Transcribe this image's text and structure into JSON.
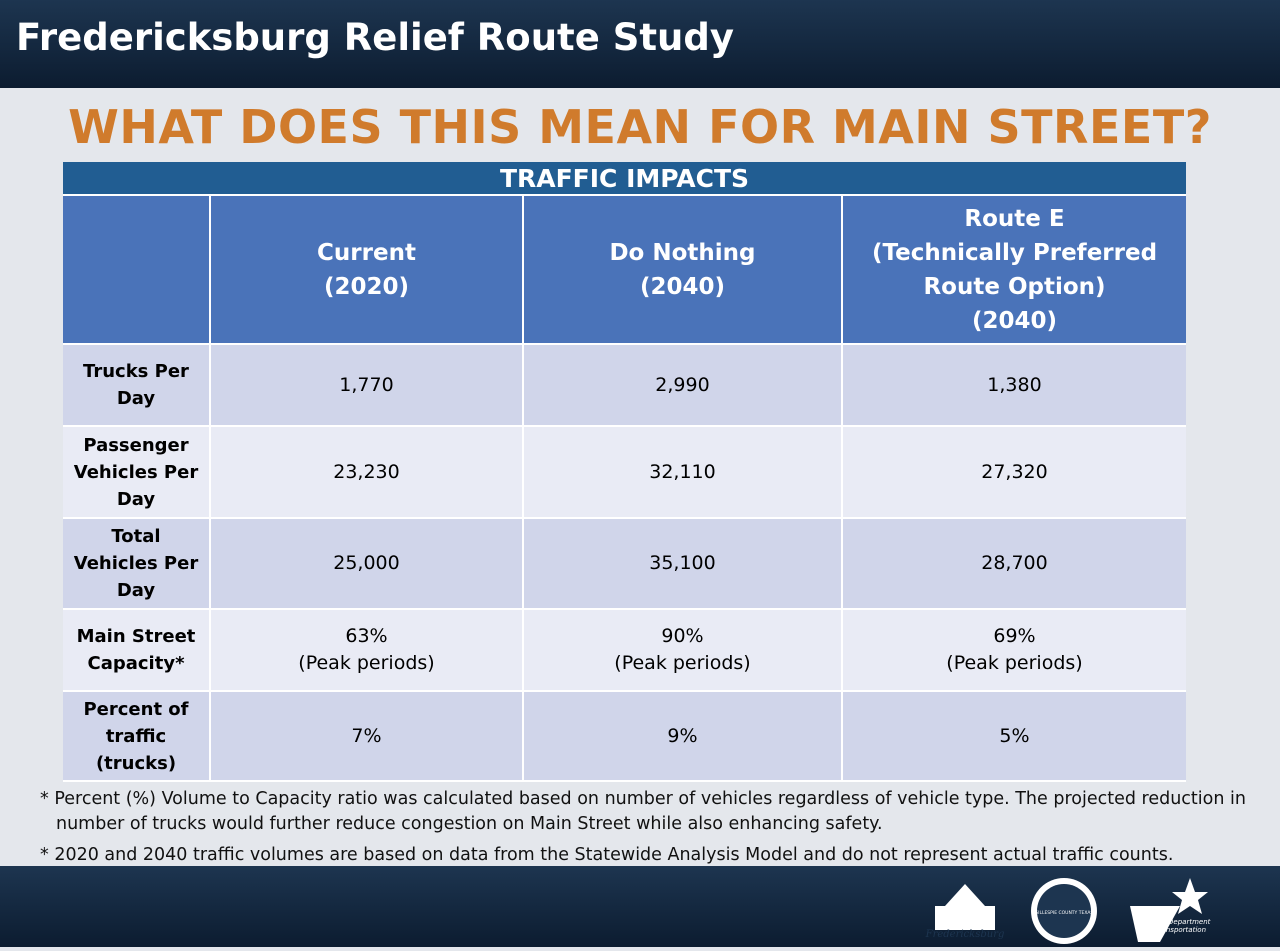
{
  "header": {
    "title": "Fredericksburg Relief Route Study"
  },
  "heading": "WHAT DOES THIS MEAN FOR MAIN STREET?",
  "table": {
    "caption": "TRAFFIC IMPACTS",
    "columns": [
      [
        "Current",
        "(2020)"
      ],
      [
        "Do Nothing",
        "(2040)"
      ],
      [
        "Route E",
        "(Technically Preferred",
        "Route Option)",
        "(2040)"
      ]
    ],
    "rows": [
      {
        "label": "Trucks Per Day",
        "cells": [
          [
            "1,770"
          ],
          [
            "2,990"
          ],
          [
            "1,380"
          ]
        ]
      },
      {
        "label": "Passenger Vehicles Per Day",
        "cells": [
          [
            "23,230"
          ],
          [
            "32,110"
          ],
          [
            "27,320"
          ]
        ]
      },
      {
        "label": "Total Vehicles Per Day",
        "cells": [
          [
            "25,000"
          ],
          [
            "35,100"
          ],
          [
            "28,700"
          ]
        ]
      },
      {
        "label": "Main Street Capacity*",
        "cells": [
          [
            "63%",
            "(Peak periods)"
          ],
          [
            "90%",
            "(Peak periods)"
          ],
          [
            "69%",
            "(Peak periods)"
          ]
        ]
      },
      {
        "label": "Percent of traffic (trucks)",
        "cells": [
          [
            "7%"
          ],
          [
            "9%"
          ],
          [
            "5%"
          ]
        ]
      }
    ]
  },
  "footnotes": [
    "* Percent (%) Volume to Capacity ratio was calculated based on number of vehicles regardless of vehicle type. The projected reduction in number of trucks would further reduce congestion on Main Street while also enhancing safety.",
    "* 2020 and 2040 traffic volumes are based on data from the Statewide Analysis Model and do not represent actual traffic counts."
  ],
  "logos": {
    "city": "Fredericksburg",
    "county": "GILLESPIE COUNTY TEXAS",
    "txdot": "Texas Department of Transportation"
  }
}
